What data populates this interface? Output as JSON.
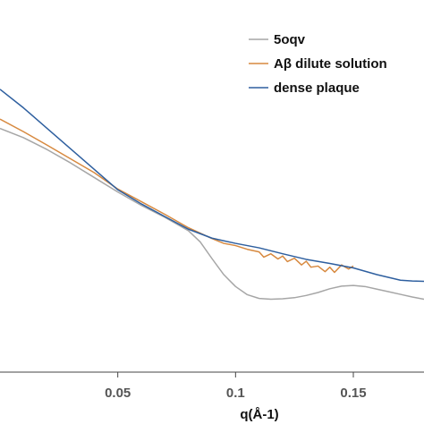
{
  "chart_data": {
    "type": "line",
    "xlabel": "q(Å-1)",
    "xlim": [
      0.0,
      0.18
    ],
    "ylim": [
      0.0,
      1.0
    ],
    "x_ticks": [
      0.05,
      0.1,
      0.15
    ],
    "x_tick_labels": [
      "0.05",
      "0.1",
      "0.15"
    ],
    "grid": false,
    "legend_position": "top-right",
    "series": [
      {
        "name": "5oqv",
        "color": "#a6a6a6",
        "x": [
          0.0,
          0.01,
          0.02,
          0.03,
          0.04,
          0.05,
          0.06,
          0.07,
          0.08,
          0.085,
          0.09,
          0.095,
          0.1,
          0.105,
          0.11,
          0.115,
          0.12,
          0.125,
          0.13,
          0.135,
          0.14,
          0.145,
          0.15,
          0.155,
          0.16,
          0.165,
          0.17,
          0.175,
          0.18
        ],
        "y": [
          0.655,
          0.63,
          0.598,
          0.562,
          0.523,
          0.484,
          0.448,
          0.416,
          0.38,
          0.35,
          0.305,
          0.262,
          0.23,
          0.208,
          0.198,
          0.196,
          0.197,
          0.2,
          0.206,
          0.214,
          0.224,
          0.231,
          0.233,
          0.23,
          0.223,
          0.216,
          0.209,
          0.202,
          0.196
        ]
      },
      {
        "name": "Aβ dilute solution",
        "color": "#d7893f",
        "x": [
          0.0,
          0.01,
          0.02,
          0.03,
          0.04,
          0.05,
          0.06,
          0.07,
          0.08,
          0.09,
          0.095,
          0.1,
          0.105,
          0.11,
          0.112,
          0.115,
          0.118,
          0.12,
          0.122,
          0.125,
          0.128,
          0.13,
          0.132,
          0.135,
          0.138,
          0.14,
          0.142,
          0.145,
          0.148,
          0.15
        ],
        "y": [
          0.68,
          0.646,
          0.61,
          0.573,
          0.536,
          0.492,
          0.458,
          0.424,
          0.388,
          0.359,
          0.346,
          0.34,
          0.33,
          0.323,
          0.309,
          0.318,
          0.304,
          0.312,
          0.297,
          0.306,
          0.288,
          0.298,
          0.282,
          0.285,
          0.27,
          0.282,
          0.268,
          0.288,
          0.277,
          0.285
        ]
      },
      {
        "name": "dense plaque",
        "color": "#2e5f9f",
        "x": [
          0.0,
          0.01,
          0.02,
          0.03,
          0.04,
          0.05,
          0.06,
          0.07,
          0.08,
          0.09,
          0.1,
          0.11,
          0.12,
          0.13,
          0.14,
          0.15,
          0.16,
          0.17,
          0.175,
          0.18
        ],
        "y": [
          0.76,
          0.71,
          0.655,
          0.6,
          0.545,
          0.49,
          0.452,
          0.418,
          0.384,
          0.36,
          0.346,
          0.334,
          0.318,
          0.303,
          0.292,
          0.28,
          0.262,
          0.247,
          0.245,
          0.244
        ]
      }
    ]
  }
}
